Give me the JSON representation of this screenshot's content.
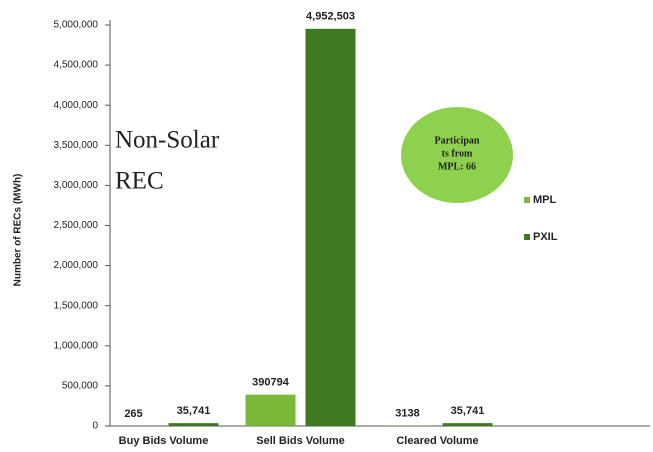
{
  "chart_data": {
    "type": "bar",
    "categories": [
      "Buy Bids Volume",
      "Sell Bids Volume",
      "Cleared Volume"
    ],
    "series": [
      {
        "name": "MPL",
        "color": "#7ab83a",
        "values": [
          265,
          390794,
          3138
        ]
      },
      {
        "name": "PXIL",
        "color": "#3e7a22",
        "values": [
          35741,
          4952503,
          35741
        ],
        "value_labels": [
          "35,741",
          "4,952,503",
          "35,741"
        ]
      }
    ],
    "y_label": "Number of RECs (MWh)",
    "ylim": [
      0,
      5000000
    ],
    "yticks": [
      0,
      {
        "value": 500000,
        "label": "500,000"
      },
      {
        "value": 1000000,
        "label": "1,000,000"
      },
      {
        "value": 1500000,
        "label": "1,500,000"
      },
      {
        "value": 2000000,
        "label": "2,000,000"
      },
      {
        "value": 2500000,
        "label": "2,500,000"
      },
      {
        "value": 3000000,
        "label": "3,000,000"
      },
      {
        "value": 3500000,
        "label": "3,500,000"
      },
      {
        "value": 4000000,
        "label": "4,000,000"
      },
      {
        "value": 4500000,
        "label": "4,500,000"
      },
      {
        "value": 5000000,
        "label": "5,000,000"
      }
    ],
    "annotations": [
      [
        "Non-Solar",
        "REC"
      ],
      [
        "Participan",
        "ts from",
        "MPL: 66"
      ]
    ],
    "legend": "right"
  }
}
